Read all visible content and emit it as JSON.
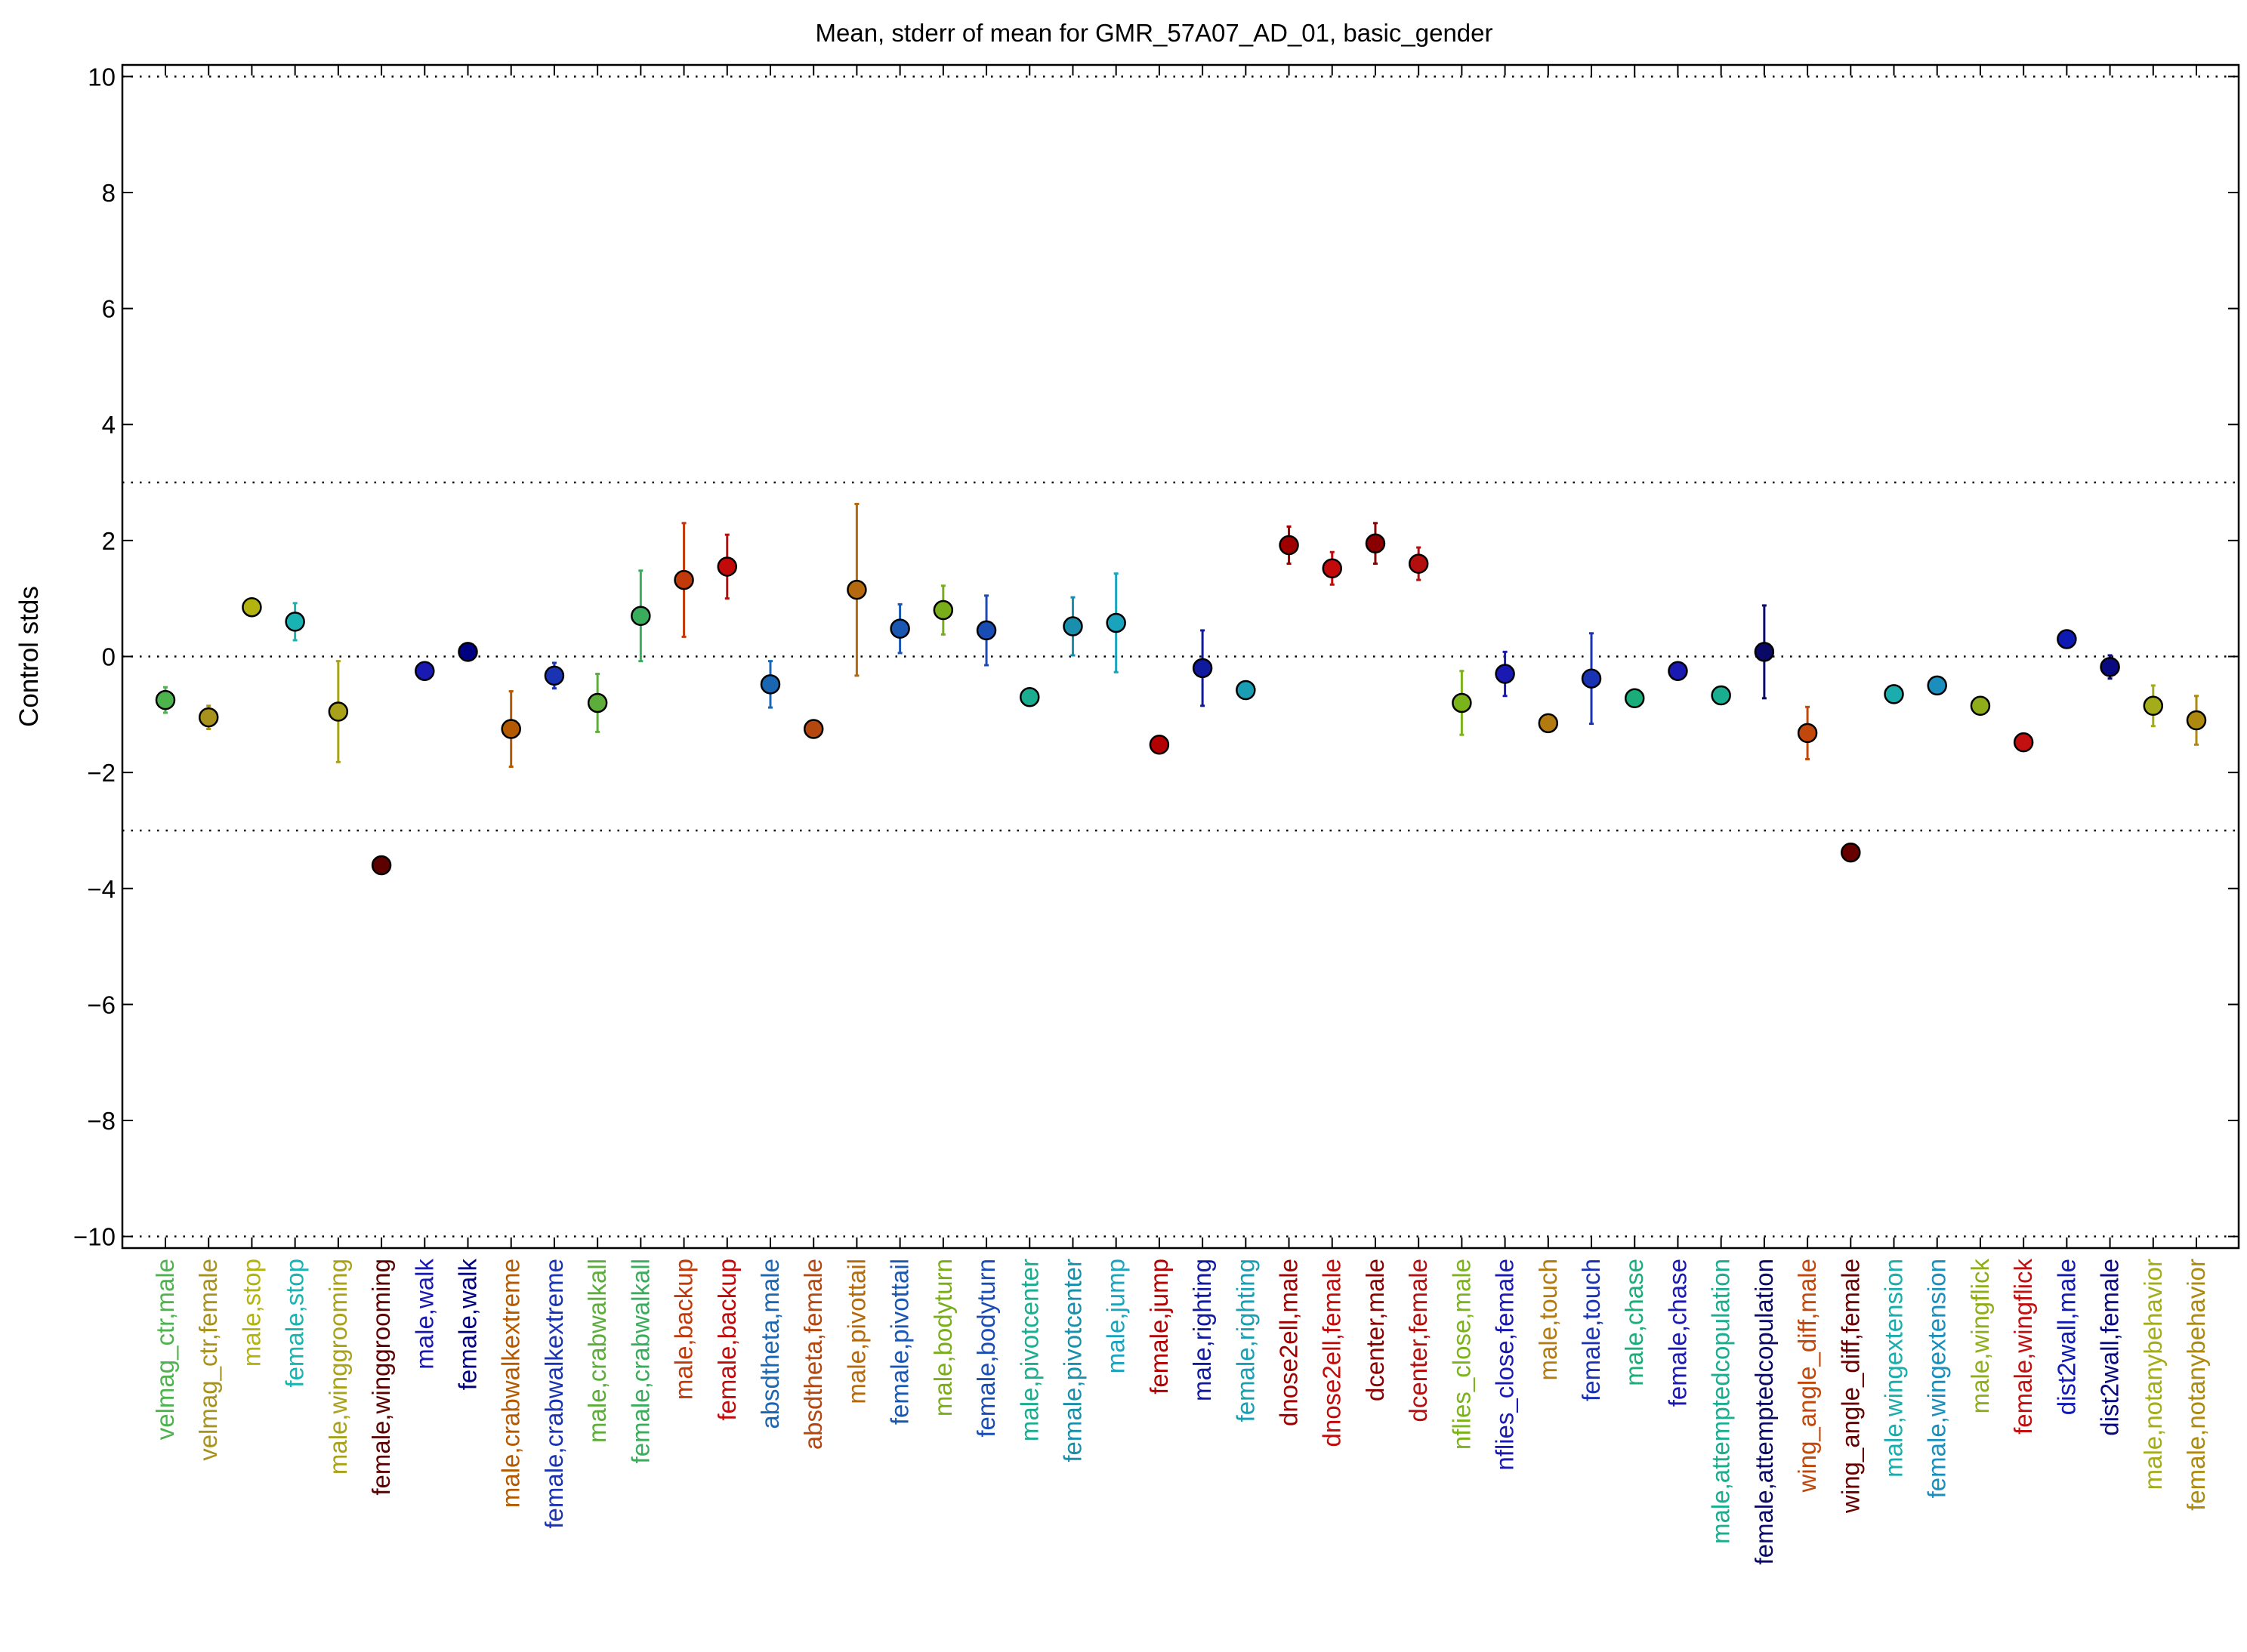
{
  "chart_data": {
    "type": "scatter",
    "title": "Mean, stderr of mean for GMR_57A07_AD_01, basic_gender",
    "xlabel": "",
    "ylabel": "Control stds",
    "ylim": [
      -10.2,
      10.2
    ],
    "yticks": [
      "10",
      "8",
      "6",
      "4",
      "2",
      "0",
      "−2",
      "−4",
      "−6",
      "−8",
      "−10"
    ],
    "ytick_values": [
      10,
      8,
      6,
      4,
      2,
      0,
      -2,
      -4,
      -6,
      -8,
      -10
    ],
    "reference_lines": [
      10,
      3,
      0,
      -3,
      -10
    ],
    "grid": false,
    "legend": "none",
    "points": [
      {
        "label": "velmag_ctr,male",
        "mean": -0.75,
        "stderr": 0.22,
        "color": "#4db34d"
      },
      {
        "label": "velmag_ctr,female",
        "mean": -1.05,
        "stderr": 0.2,
        "color": "#a8921e"
      },
      {
        "label": "male,stop",
        "mean": 0.85,
        "stderr": 0.1,
        "color": "#b3b30f"
      },
      {
        "label": "female,stop",
        "mean": 0.6,
        "stderr": 0.32,
        "color": "#1ab3b3"
      },
      {
        "label": "male,winggrooming",
        "mean": -0.95,
        "stderr": 0.87,
        "color": "#a9a11a"
      },
      {
        "label": "female,winggrooming",
        "mean": -3.6,
        "stderr": 0.06,
        "color": "#5c0000"
      },
      {
        "label": "male,walk",
        "mean": -0.25,
        "stderr": 0.1,
        "color": "#1a1ab3"
      },
      {
        "label": "female,walk",
        "mean": 0.08,
        "stderr": 0.08,
        "color": "#000080"
      },
      {
        "label": "male,crabwalkextreme",
        "mean": -1.25,
        "stderr": 0.65,
        "color": "#b35a00"
      },
      {
        "label": "female,crabwalkextreme",
        "mean": -0.33,
        "stderr": 0.22,
        "color": "#1a33b3"
      },
      {
        "label": "male,crabwalkall",
        "mean": -0.8,
        "stderr": 0.5,
        "color": "#5cad3a"
      },
      {
        "label": "female,crabwalkall",
        "mean": 0.7,
        "stderr": 0.78,
        "color": "#3aad5c"
      },
      {
        "label": "male,backup",
        "mean": 1.32,
        "stderr": 0.98,
        "color": "#c23a0a"
      },
      {
        "label": "female,backup",
        "mean": 1.55,
        "stderr": 0.55,
        "color": "#c20a0a"
      },
      {
        "label": "absdtheta,male",
        "mean": -0.48,
        "stderr": 0.4,
        "color": "#1a66b3"
      },
      {
        "label": "absdtheta,female",
        "mean": -1.25,
        "stderr": 0.05,
        "color": "#b3470f"
      },
      {
        "label": "male,pivottail",
        "mean": 1.15,
        "stderr": 1.48,
        "color": "#b36a0f"
      },
      {
        "label": "female,pivottail",
        "mean": 0.48,
        "stderr": 0.42,
        "color": "#1a57b3"
      },
      {
        "label": "male,bodyturn",
        "mean": 0.8,
        "stderr": 0.42,
        "color": "#7aad1a"
      },
      {
        "label": "female,bodyturn",
        "mean": 0.45,
        "stderr": 0.6,
        "color": "#1a4db3"
      },
      {
        "label": "male,pivotcenter",
        "mean": -0.7,
        "stderr": 0.05,
        "color": "#1aad8f"
      },
      {
        "label": "female,pivotcenter",
        "mean": 0.52,
        "stderr": 0.5,
        "color": "#1a8fad"
      },
      {
        "label": "male,jump",
        "mean": 0.58,
        "stderr": 0.85,
        "color": "#1aa3bd"
      },
      {
        "label": "female,jump",
        "mean": -1.52,
        "stderr": 0.05,
        "color": "#b30000"
      },
      {
        "label": "male,righting",
        "mean": -0.2,
        "stderr": 0.65,
        "color": "#0f1a9e"
      },
      {
        "label": "female,righting",
        "mean": -0.58,
        "stderr": 0.05,
        "color": "#1a9eb3"
      },
      {
        "label": "dnose2ell,male",
        "mean": 1.92,
        "stderr": 0.32,
        "color": "#9e0000"
      },
      {
        "label": "dnose2ell,female",
        "mean": 1.52,
        "stderr": 0.28,
        "color": "#c20a0a"
      },
      {
        "label": "dcenter,male",
        "mean": 1.95,
        "stderr": 0.35,
        "color": "#8a0000"
      },
      {
        "label": "dcenter,female",
        "mean": 1.6,
        "stderr": 0.28,
        "color": "#b30f0f"
      },
      {
        "label": "nflies_close,male",
        "mean": -0.8,
        "stderr": 0.55,
        "color": "#7ab31a"
      },
      {
        "label": "nflies_close,female",
        "mean": -0.3,
        "stderr": 0.38,
        "color": "#1a1ab3"
      },
      {
        "label": "male,touch",
        "mean": -1.15,
        "stderr": 0.05,
        "color": "#b37a0f"
      },
      {
        "label": "female,touch",
        "mean": -0.38,
        "stderr": 0.78,
        "color": "#1a33b3"
      },
      {
        "label": "male,chase",
        "mean": -0.72,
        "stderr": 0.05,
        "color": "#1aad7a"
      },
      {
        "label": "female,chase",
        "mean": -0.25,
        "stderr": 0.05,
        "color": "#1a1ab3"
      },
      {
        "label": "male,attemptedcopulation",
        "mean": -0.67,
        "stderr": 0.05,
        "color": "#1aad8f"
      },
      {
        "label": "female,attemptedcopulation",
        "mean": 0.08,
        "stderr": 0.8,
        "color": "#0a0a66"
      },
      {
        "label": "wing_angle_diff,male",
        "mean": -1.32,
        "stderr": 0.45,
        "color": "#c2470a"
      },
      {
        "label": "wing_angle_diff,female",
        "mean": -3.38,
        "stderr": 0.05,
        "color": "#660000"
      },
      {
        "label": "male,wingextension",
        "mean": -0.65,
        "stderr": 0.05,
        "color": "#1aadad"
      },
      {
        "label": "female,wingextension",
        "mean": -0.5,
        "stderr": 0.05,
        "color": "#1a8fbd"
      },
      {
        "label": "male,wingflick",
        "mean": -0.85,
        "stderr": 0.05,
        "color": "#8fad1a"
      },
      {
        "label": "female,wingflick",
        "mean": -1.48,
        "stderr": 0.05,
        "color": "#c20f0f"
      },
      {
        "label": "dist2wall,male",
        "mean": 0.3,
        "stderr": 0.05,
        "color": "#0f1ab3"
      },
      {
        "label": "dist2wall,female",
        "mean": -0.18,
        "stderr": 0.2,
        "color": "#0a0a80"
      },
      {
        "label": "male,notanybehavior",
        "mean": -0.85,
        "stderr": 0.35,
        "color": "#a3ad1a"
      },
      {
        "label": "female,notanybehavior",
        "mean": -1.1,
        "stderr": 0.42,
        "color": "#ad8a0f"
      }
    ]
  }
}
